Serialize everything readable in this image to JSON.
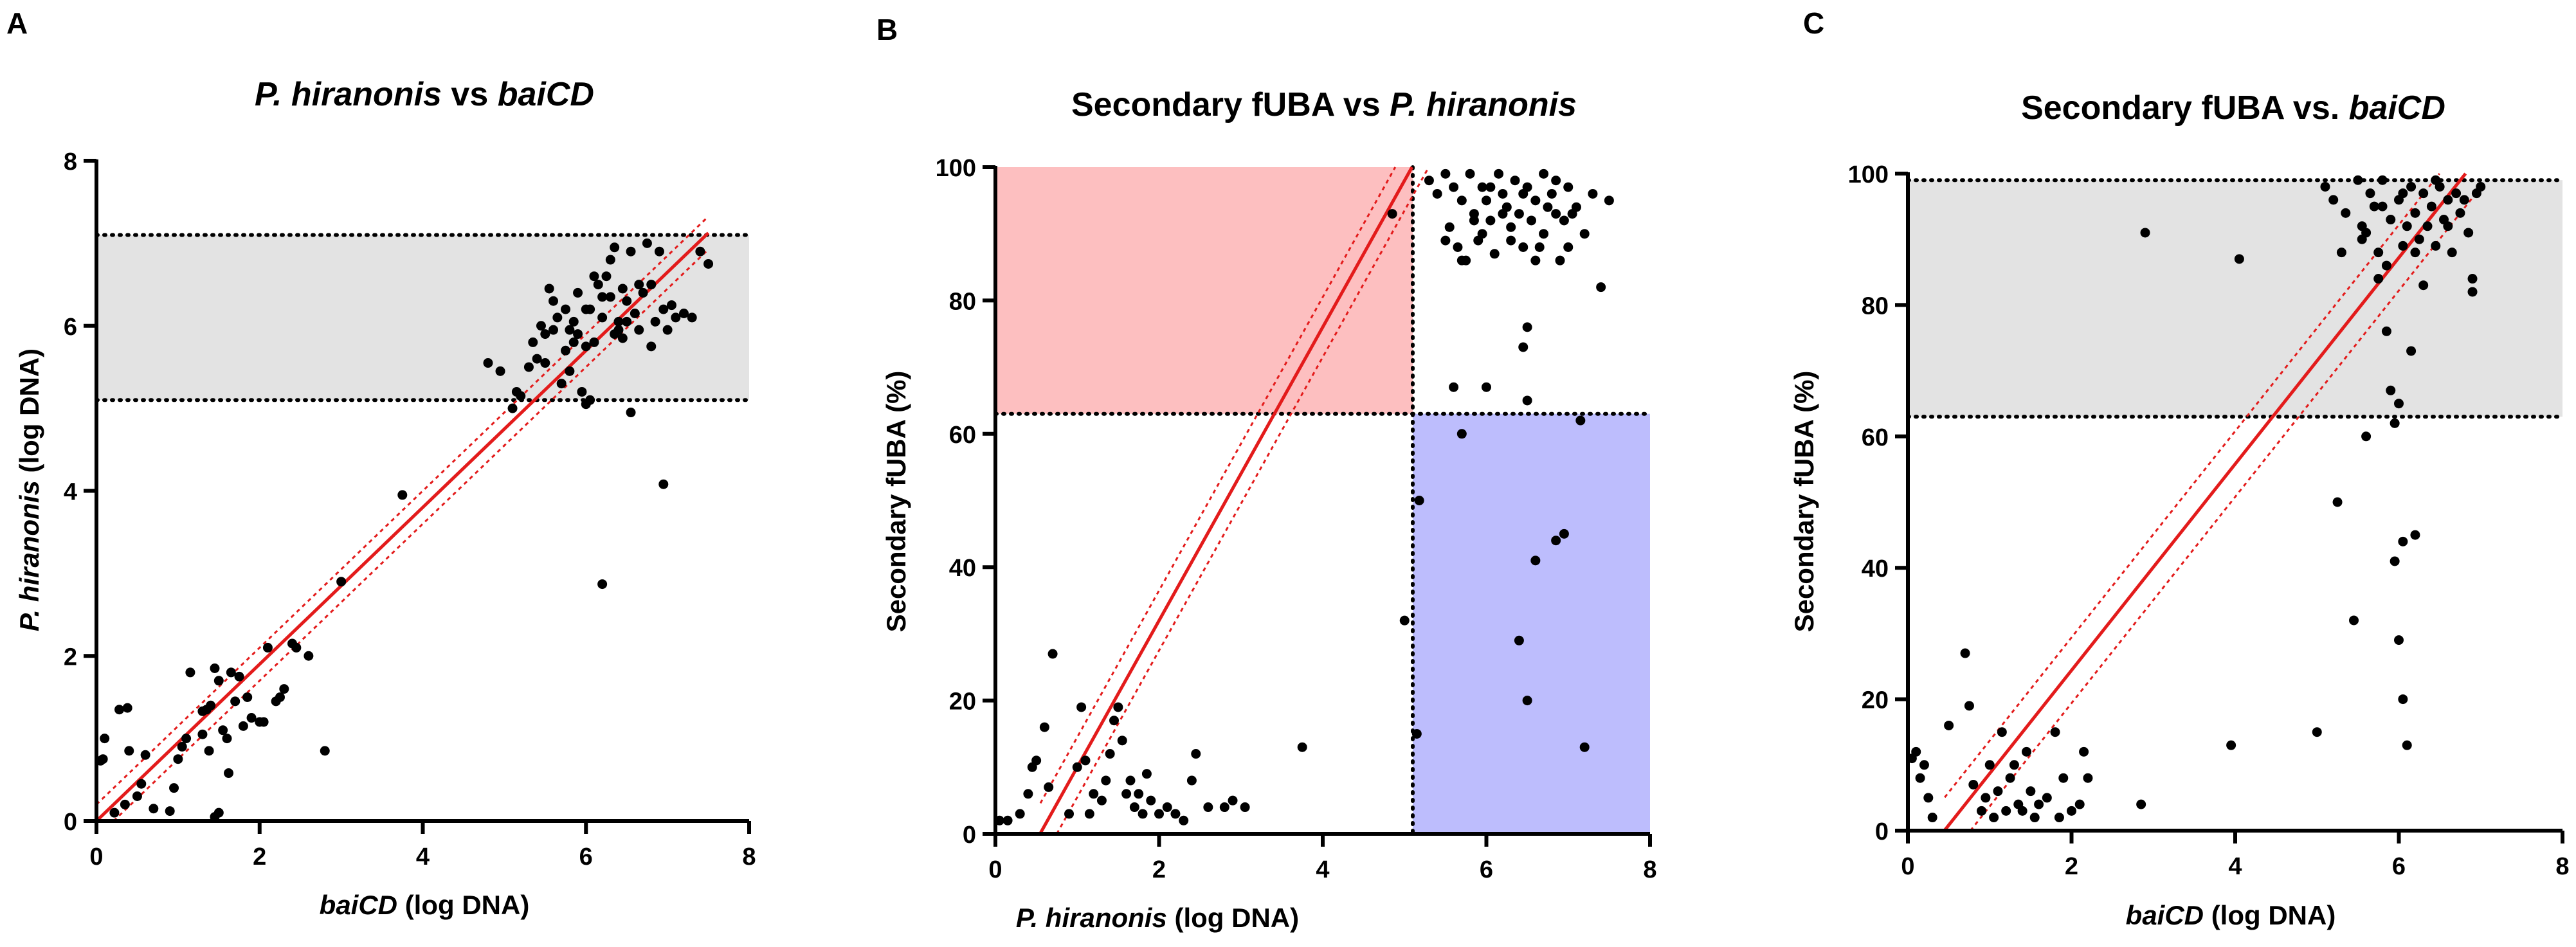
{
  "colors": {
    "shade_gray": "#e3e3e3",
    "shade_red": "#fdbfc0",
    "shade_blue": "#bdbdfd",
    "fit_line": "#e31b1b",
    "points": "#000000"
  },
  "chart_data": [
    {
      "panel_label": "A",
      "type": "scatter",
      "title": "P. hiranonis vs baiCD",
      "title_parts": [
        {
          "text": "P. hiranonis",
          "italic": true
        },
        {
          "text": " vs ",
          "italic": false
        },
        {
          "text": "baiCD",
          "italic": true
        }
      ],
      "xlabel_parts": [
        {
          "text": "baiCD",
          "italic": true
        },
        {
          "text": " (log DNA)",
          "italic": false
        }
      ],
      "ylabel_parts": [
        {
          "text": "P. hiranonis",
          "italic": true
        },
        {
          "text": " (log DNA)",
          "italic": false
        }
      ],
      "xlim": [
        0,
        8
      ],
      "ylim": [
        0,
        8
      ],
      "xticks": [
        0,
        2,
        4,
        6,
        8
      ],
      "yticks": [
        0,
        2,
        4,
        6,
        8
      ],
      "bands": [
        {
          "y0": 5.1,
          "y1": 7.1,
          "color": "gray",
          "dotted_edges": true
        }
      ],
      "fit": {
        "slope": 0.95,
        "intercept": 0.0,
        "band": 0.2,
        "x_range": [
          0,
          7.5
        ]
      },
      "points": [
        [
          0.05,
          0.73
        ],
        [
          0.08,
          0.75
        ],
        [
          0.1,
          1.0
        ],
        [
          0.28,
          1.35
        ],
        [
          0.38,
          1.37
        ],
        [
          0.22,
          0.1
        ],
        [
          0.35,
          0.2
        ],
        [
          0.5,
          0.3
        ],
        [
          0.55,
          0.45
        ],
        [
          0.6,
          0.8
        ],
        [
          0.4,
          0.85
        ],
        [
          0.7,
          0.15
        ],
        [
          0.9,
          0.12
        ],
        [
          0.95,
          0.4
        ],
        [
          1.0,
          0.75
        ],
        [
          1.05,
          0.9
        ],
        [
          1.1,
          1.0
        ],
        [
          1.15,
          1.8
        ],
        [
          1.3,
          1.05
        ],
        [
          1.35,
          1.35
        ],
        [
          1.38,
          0.85
        ],
        [
          1.4,
          1.4
        ],
        [
          1.45,
          1.85
        ],
        [
          1.5,
          1.7
        ],
        [
          1.55,
          1.1
        ],
        [
          1.6,
          1.0
        ],
        [
          1.62,
          0.58
        ],
        [
          1.65,
          1.8
        ],
        [
          1.7,
          1.45
        ],
        [
          1.75,
          1.75
        ],
        [
          1.8,
          1.15
        ],
        [
          1.85,
          1.5
        ],
        [
          1.9,
          1.25
        ],
        [
          2.0,
          1.2
        ],
        [
          2.05,
          1.2
        ],
        [
          2.1,
          2.1
        ],
        [
          2.2,
          1.45
        ],
        [
          2.25,
          1.5
        ],
        [
          2.3,
          1.6
        ],
        [
          2.4,
          2.15
        ],
        [
          2.45,
          2.1
        ],
        [
          2.6,
          2.0
        ],
        [
          1.45,
          0.05
        ],
        [
          1.5,
          0.1
        ],
        [
          2.8,
          0.85
        ],
        [
          3.0,
          2.9
        ],
        [
          3.75,
          3.95
        ],
        [
          1.3,
          1.33
        ],
        [
          4.8,
          5.55
        ],
        [
          4.95,
          5.45
        ],
        [
          5.1,
          5.0
        ],
        [
          5.15,
          5.2
        ],
        [
          5.2,
          5.15
        ],
        [
          5.3,
          5.5
        ],
        [
          5.35,
          5.8
        ],
        [
          5.4,
          5.6
        ],
        [
          5.45,
          6.0
        ],
        [
          5.5,
          5.9
        ],
        [
          5.55,
          6.45
        ],
        [
          5.6,
          6.3
        ],
        [
          5.65,
          6.1
        ],
        [
          5.7,
          5.3
        ],
        [
          5.75,
          6.2
        ],
        [
          5.8,
          5.45
        ],
        [
          5.85,
          6.05
        ],
        [
          5.9,
          5.9
        ],
        [
          5.95,
          5.2
        ],
        [
          6.0,
          5.05
        ],
        [
          6.05,
          5.1
        ],
        [
          6.1,
          5.8
        ],
        [
          6.15,
          6.5
        ],
        [
          6.2,
          6.1
        ],
        [
          6.25,
          6.6
        ],
        [
          6.3,
          6.8
        ],
        [
          6.35,
          6.95
        ],
        [
          6.4,
          6.05
        ],
        [
          6.45,
          5.85
        ],
        [
          6.5,
          6.3
        ],
        [
          6.55,
          6.9
        ],
        [
          6.6,
          6.15
        ],
        [
          6.65,
          5.95
        ],
        [
          6.7,
          6.4
        ],
        [
          6.75,
          7.0
        ],
        [
          6.8,
          6.5
        ],
        [
          6.85,
          6.05
        ],
        [
          6.9,
          6.9
        ],
        [
          6.95,
          6.2
        ],
        [
          7.0,
          5.95
        ],
        [
          7.05,
          6.25
        ],
        [
          7.1,
          6.1
        ],
        [
          7.2,
          6.15
        ],
        [
          7.3,
          6.1
        ],
        [
          7.4,
          6.9
        ],
        [
          7.5,
          6.75
        ],
        [
          5.6,
          5.95
        ],
        [
          5.75,
          5.7
        ],
        [
          5.9,
          6.4
        ],
        [
          6.05,
          6.2
        ],
        [
          6.2,
          6.35
        ],
        [
          6.35,
          5.9
        ],
        [
          6.5,
          6.05
        ],
        [
          6.65,
          6.5
        ],
        [
          6.8,
          5.75
        ],
        [
          5.5,
          5.55
        ],
        [
          6.0,
          5.75
        ],
        [
          6.4,
          5.95
        ],
        [
          6.55,
          4.95
        ],
        [
          6.2,
          2.87
        ],
        [
          6.95,
          4.08
        ],
        [
          5.8,
          5.95
        ],
        [
          6.1,
          6.6
        ],
        [
          6.3,
          6.35
        ],
        [
          6.45,
          6.45
        ],
        [
          6.0,
          6.2
        ],
        [
          5.85,
          5.8
        ]
      ]
    },
    {
      "panel_label": "B",
      "type": "scatter",
      "title": "Secondary fUBA vs P. hiranonis",
      "title_parts": [
        {
          "text": "Secondary fUBA vs ",
          "italic": false
        },
        {
          "text": "P. hiranonis",
          "italic": true
        }
      ],
      "xlabel_parts": [
        {
          "text": "P. hiranonis",
          "italic": true
        },
        {
          "text": " (log DNA)",
          "italic": false
        }
      ],
      "ylabel_parts": [
        {
          "text": "Secondary fUBA (%)",
          "italic": false
        }
      ],
      "xlim": [
        0,
        8
      ],
      "ylim": [
        0,
        100
      ],
      "xticks": [
        0,
        2,
        4,
        6,
        8
      ],
      "yticks": [
        0,
        20,
        40,
        60,
        80,
        100
      ],
      "regions": [
        {
          "x0": 0,
          "x1": 5.1,
          "y0": 63,
          "y1": 100,
          "color": "red"
        },
        {
          "x0": 5.1,
          "x1": 8,
          "y0": 0,
          "y1": 63,
          "color": "blue"
        }
      ],
      "dotted_lines": {
        "h": 63,
        "v": 5.1
      },
      "fit": {
        "slope": 22.0,
        "intercept": -12.0,
        "band": 4.5,
        "x_range": [
          0.55,
          7.3
        ]
      },
      "points": [
        [
          0.05,
          2
        ],
        [
          0.15,
          2
        ],
        [
          0.3,
          3
        ],
        [
          0.4,
          6
        ],
        [
          0.45,
          10
        ],
        [
          0.5,
          11
        ],
        [
          0.6,
          16
        ],
        [
          0.65,
          7
        ],
        [
          0.7,
          27
        ],
        [
          0.9,
          3
        ],
        [
          1.0,
          10
        ],
        [
          1.05,
          19
        ],
        [
          1.1,
          11
        ],
        [
          1.15,
          3
        ],
        [
          1.2,
          6
        ],
        [
          1.3,
          5
        ],
        [
          1.35,
          8
        ],
        [
          1.4,
          12
        ],
        [
          1.45,
          17
        ],
        [
          1.5,
          19
        ],
        [
          1.55,
          14
        ],
        [
          1.6,
          6
        ],
        [
          1.65,
          8
        ],
        [
          1.7,
          4
        ],
        [
          1.75,
          6
        ],
        [
          1.8,
          3
        ],
        [
          1.85,
          9
        ],
        [
          1.9,
          5
        ],
        [
          2.0,
          3
        ],
        [
          2.1,
          4
        ],
        [
          2.2,
          3
        ],
        [
          2.3,
          2
        ],
        [
          2.4,
          8
        ],
        [
          2.45,
          12
        ],
        [
          2.6,
          4
        ],
        [
          2.8,
          4
        ],
        [
          2.9,
          5
        ],
        [
          3.05,
          4
        ],
        [
          3.75,
          13
        ],
        [
          4.85,
          93
        ],
        [
          5.0,
          32
        ],
        [
          5.15,
          15
        ],
        [
          5.18,
          50
        ],
        [
          5.3,
          98
        ],
        [
          5.5,
          99
        ],
        [
          5.4,
          96
        ],
        [
          5.6,
          97
        ],
        [
          5.55,
          91
        ],
        [
          5.7,
          95
        ],
        [
          5.65,
          88
        ],
        [
          5.75,
          86
        ],
        [
          5.8,
          99
        ],
        [
          5.85,
          93
        ],
        [
          5.9,
          89
        ],
        [
          5.95,
          97
        ],
        [
          6.0,
          95
        ],
        [
          6.05,
          92
        ],
        [
          6.1,
          87
        ],
        [
          6.15,
          99
        ],
        [
          6.2,
          96
        ],
        [
          6.25,
          94
        ],
        [
          6.3,
          91
        ],
        [
          6.35,
          98
        ],
        [
          6.4,
          93
        ],
        [
          6.45,
          88
        ],
        [
          6.5,
          97
        ],
        [
          6.55,
          92
        ],
        [
          6.6,
          95
        ],
        [
          6.65,
          88
        ],
        [
          6.7,
          99
        ],
        [
          6.75,
          94
        ],
        [
          6.8,
          96
        ],
        [
          6.85,
          98
        ],
        [
          6.9,
          86
        ],
        [
          6.95,
          92
        ],
        [
          7.0,
          97
        ],
        [
          7.05,
          93
        ],
        [
          7.1,
          94
        ],
        [
          7.2,
          90
        ],
        [
          7.3,
          96
        ],
        [
          7.4,
          82
        ],
        [
          7.5,
          95
        ],
        [
          5.7,
          86
        ],
        [
          5.95,
          90
        ],
        [
          6.2,
          93
        ],
        [
          6.45,
          96
        ],
        [
          6.6,
          86
        ],
        [
          6.85,
          93
        ],
        [
          7.0,
          88
        ],
        [
          5.6,
          67
        ],
        [
          5.7,
          60
        ],
        [
          6.0,
          67
        ],
        [
          6.45,
          73
        ],
        [
          6.5,
          76
        ],
        [
          6.5,
          65
        ],
        [
          6.4,
          29
        ],
        [
          6.5,
          20
        ],
        [
          6.6,
          41
        ],
        [
          6.85,
          44
        ],
        [
          6.95,
          45
        ],
        [
          7.2,
          13
        ],
        [
          7.15,
          62
        ],
        [
          6.05,
          97
        ],
        [
          5.85,
          92
        ],
        [
          6.3,
          89
        ],
        [
          6.7,
          90
        ],
        [
          5.5,
          89
        ]
      ]
    },
    {
      "panel_label": "C",
      "type": "scatter",
      "title": "Secondary fUBA vs. baiCD",
      "title_parts": [
        {
          "text": "Secondary fUBA vs. ",
          "italic": false
        },
        {
          "text": "baiCD",
          "italic": true
        }
      ],
      "xlabel_parts": [
        {
          "text": "baiCD",
          "italic": true
        },
        {
          "text": " (log DNA)",
          "italic": false
        }
      ],
      "ylabel_parts": [
        {
          "text": "Secondary fUBA (%)",
          "italic": false
        }
      ],
      "xlim": [
        0,
        8
      ],
      "ylim": [
        0,
        100
      ],
      "xticks": [
        0,
        2,
        4,
        6,
        8
      ],
      "yticks": [
        0,
        20,
        40,
        60,
        80,
        100
      ],
      "bands": [
        {
          "y0": 63,
          "y1": 99,
          "color": "gray",
          "dotted_edges": true
        }
      ],
      "fit": {
        "slope": 15.7,
        "intercept": -7.0,
        "band": 5.0,
        "x_range": [
          0.45,
          7.0
        ]
      },
      "points": [
        [
          0.05,
          11
        ],
        [
          0.1,
          12
        ],
        [
          0.15,
          8
        ],
        [
          0.2,
          10
        ],
        [
          0.25,
          5
        ],
        [
          0.3,
          2
        ],
        [
          0.5,
          16
        ],
        [
          0.7,
          27
        ],
        [
          0.75,
          19
        ],
        [
          0.8,
          7
        ],
        [
          0.9,
          3
        ],
        [
          0.95,
          5
        ],
        [
          1.0,
          10
        ],
        [
          1.05,
          2
        ],
        [
          1.1,
          6
        ],
        [
          1.15,
          15
        ],
        [
          1.2,
          3
        ],
        [
          1.25,
          8
        ],
        [
          1.3,
          10
        ],
        [
          1.35,
          4
        ],
        [
          1.4,
          3
        ],
        [
          1.45,
          12
        ],
        [
          1.5,
          6
        ],
        [
          1.55,
          2
        ],
        [
          1.6,
          4
        ],
        [
          1.7,
          5
        ],
        [
          1.8,
          15
        ],
        [
          1.85,
          2
        ],
        [
          1.9,
          8
        ],
        [
          2.0,
          3
        ],
        [
          2.1,
          4
        ],
        [
          2.15,
          12
        ],
        [
          2.2,
          8
        ],
        [
          2.85,
          4
        ],
        [
          2.9,
          91
        ],
        [
          3.95,
          13
        ],
        [
          4.05,
          87
        ],
        [
          5.0,
          15
        ],
        [
          5.1,
          98
        ],
        [
          5.2,
          96
        ],
        [
          5.25,
          50
        ],
        [
          5.3,
          88
        ],
        [
          5.35,
          94
        ],
        [
          5.45,
          32
        ],
        [
          5.5,
          99
        ],
        [
          5.55,
          92
        ],
        [
          5.6,
          60
        ],
        [
          5.65,
          97
        ],
        [
          5.7,
          95
        ],
        [
          5.75,
          88
        ],
        [
          5.8,
          99
        ],
        [
          5.85,
          86
        ],
        [
          5.9,
          93
        ],
        [
          5.95,
          41
        ],
        [
          6.0,
          96
        ],
        [
          6.05,
          89
        ],
        [
          6.1,
          92
        ],
        [
          6.15,
          98
        ],
        [
          6.2,
          94
        ],
        [
          6.25,
          90
        ],
        [
          6.3,
          97
        ],
        [
          6.35,
          92
        ],
        [
          6.4,
          95
        ],
        [
          6.45,
          99
        ],
        [
          6.5,
          98
        ],
        [
          6.55,
          93
        ],
        [
          6.6,
          96
        ],
        [
          6.65,
          88
        ],
        [
          6.7,
          97
        ],
        [
          6.75,
          94
        ],
        [
          6.8,
          96
        ],
        [
          6.85,
          91
        ],
        [
          6.9,
          84
        ],
        [
          6.95,
          97
        ],
        [
          7.0,
          98
        ],
        [
          5.55,
          90
        ],
        [
          5.75,
          84
        ],
        [
          5.9,
          67
        ],
        [
          5.95,
          62
        ],
        [
          6.0,
          29
        ],
        [
          6.05,
          20
        ],
        [
          6.1,
          13
        ],
        [
          6.05,
          44
        ],
        [
          6.2,
          45
        ],
        [
          6.15,
          73
        ],
        [
          6.0,
          65
        ],
        [
          5.85,
          76
        ],
        [
          6.3,
          83
        ],
        [
          6.9,
          82
        ],
        [
          5.6,
          91
        ],
        [
          6.2,
          88
        ],
        [
          6.45,
          89
        ],
        [
          6.6,
          92
        ],
        [
          5.8,
          95
        ],
        [
          6.05,
          97
        ]
      ]
    }
  ]
}
